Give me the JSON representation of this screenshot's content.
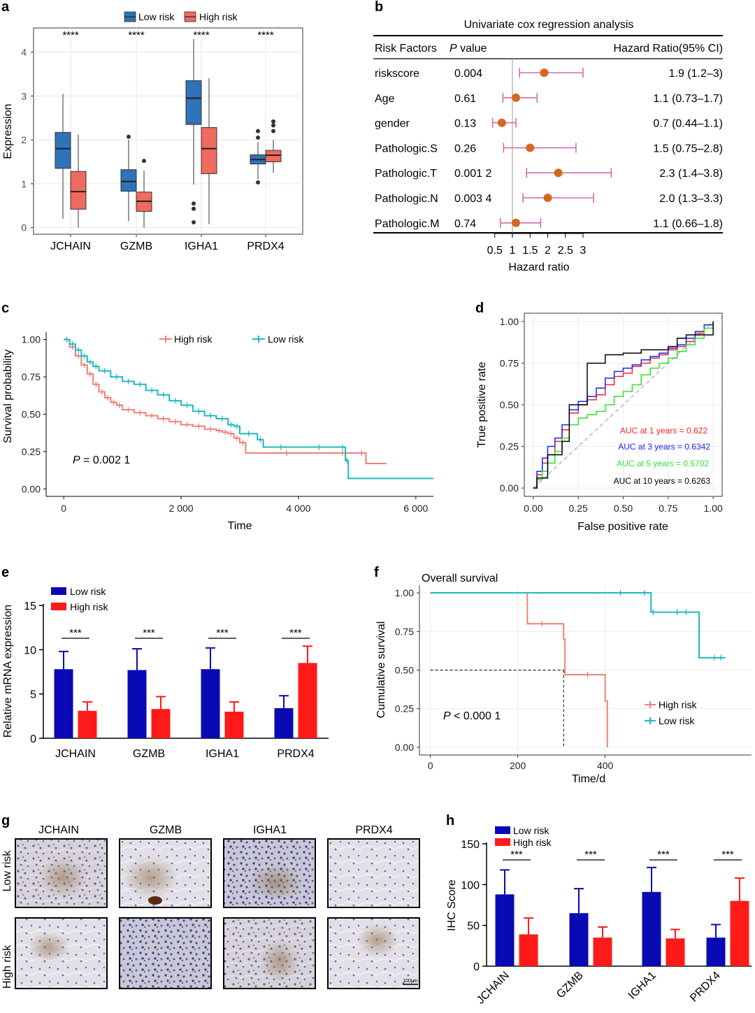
{
  "panels": {
    "a": {
      "label": "a",
      "chart_data": {
        "type": "boxplot",
        "ylabel": "Expression",
        "categories": [
          "JCHAIN",
          "GZMB",
          "IGHA1",
          "PRDX4"
        ],
        "yticks": [
          "0",
          "1",
          "2",
          "3",
          "4"
        ],
        "ylim": [
          -0.15,
          4.55
        ],
        "legend": [
          "Low risk",
          "High risk"
        ],
        "significance": [
          "****",
          "****",
          "****",
          "****"
        ],
        "colors": {
          "Low risk": "#2f73b8",
          "High risk": "#ef6a5f"
        },
        "series": [
          {
            "name": "Low risk",
            "boxes": [
              {
                "min": 0.2,
                "q1": 1.35,
                "median": 1.8,
                "q3": 2.17,
                "max": 3.05,
                "outliers": []
              },
              {
                "min": 0.15,
                "q1": 0.83,
                "median": 1.05,
                "q3": 1.32,
                "max": 2.0,
                "outliers": [
                  2.07
                ]
              },
              {
                "min": 0.98,
                "q1": 2.35,
                "median": 2.95,
                "q3": 3.35,
                "max": 4.3,
                "outliers": [
                  0.55,
                  0.43,
                  0.12
                ]
              },
              {
                "min": 1.1,
                "q1": 1.45,
                "median": 1.55,
                "q3": 1.66,
                "max": 1.95,
                "outliers": [
                  2.05,
                  2.2,
                  1.03
                ]
              }
            ]
          },
          {
            "name": "High risk",
            "boxes": [
              {
                "min": 0.0,
                "q1": 0.42,
                "median": 0.82,
                "q3": 1.28,
                "max": 2.12,
                "outliers": []
              },
              {
                "min": 0.0,
                "q1": 0.37,
                "median": 0.6,
                "q3": 0.81,
                "max": 1.3,
                "outliers": [
                  1.52
                ]
              },
              {
                "min": 0.08,
                "q1": 1.23,
                "median": 1.8,
                "q3": 2.28,
                "max": 3.4,
                "outliers": []
              },
              {
                "min": 1.25,
                "q1": 1.5,
                "median": 1.65,
                "q3": 1.76,
                "max": 2.0,
                "outliers": [
                  2.2,
                  2.33,
                  2.42
                ]
              }
            ]
          }
        ]
      }
    },
    "b": {
      "label": "b",
      "chart_data": {
        "type": "forest",
        "title": "Univariate cox regression analysis",
        "headers": {
          "factor": "Risk Factors",
          "p": "P value",
          "hr": "Hazard Ratio(95% CI)"
        },
        "p_italic": "P",
        "p_rest": " value",
        "rows": [
          {
            "factor": "riskscore",
            "p": "0.004",
            "hr_text": "1.9 (1.2–3)",
            "hr": 1.9,
            "lo": 1.2,
            "hi": 3.0
          },
          {
            "factor": "Age",
            "p": "0.61",
            "hr_text": "1.1 (0.73–1.7)",
            "hr": 1.1,
            "lo": 0.73,
            "hi": 1.7
          },
          {
            "factor": "gender",
            "p": "0.13",
            "hr_text": "0.7 (0.44–1.1)",
            "hr": 0.7,
            "lo": 0.44,
            "hi": 1.1
          },
          {
            "factor": "Pathologic.S",
            "p": "0.26",
            "hr_text": "1.5 (0.75–2.8)",
            "hr": 1.5,
            "lo": 0.75,
            "hi": 2.8
          },
          {
            "factor": "Pathologic.T",
            "p": "0.001 2",
            "hr_text": "2.3 (1.4–3.8)",
            "hr": 2.3,
            "lo": 1.4,
            "hi": 3.8
          },
          {
            "factor": "Pathologic.N",
            "p": "0.003 4",
            "hr_text": "2.0 (1.3–3.3)",
            "hr": 2.0,
            "lo": 1.3,
            "hi": 3.3
          },
          {
            "factor": "Pathologic.M",
            "p": "0.74",
            "hr_text": "1.1 (0.66–1.8)",
            "hr": 1.1,
            "lo": 0.66,
            "hi": 1.8
          }
        ],
        "xticks": [
          0.5,
          1,
          1.5,
          2,
          2.5,
          3
        ],
        "xtick_labels": [
          "0.5",
          "1",
          "1.5",
          "2",
          "2.5",
          "3"
        ],
        "xlabel": "Hazard ratio",
        "point_color": "#d2691e",
        "ci_color": "#d46bb0"
      }
    },
    "c": {
      "label": "c",
      "chart_data": {
        "type": "line",
        "subtype": "kaplan-meier",
        "xlabel": "Time",
        "ylabel": "Survival probability",
        "xticks": [
          0,
          2000,
          4000,
          6000
        ],
        "xtick_labels": [
          "0",
          "2 000",
          "4 000",
          "6 000"
        ],
        "yticks": [
          0,
          0.25,
          0.5,
          0.75,
          1.0
        ],
        "ytick_labels": [
          "0.00",
          "0.25",
          "0.50",
          "0.75",
          "1.00"
        ],
        "xlim": [
          -300,
          6300
        ],
        "ylim": [
          -0.05,
          1.05
        ],
        "p_label": "P",
        "p_value": " = 0.002 1",
        "series": [
          {
            "name": "High risk",
            "color": "#f07f75",
            "x": [
              0,
              100,
              200,
              300,
              400,
              500,
              600,
              700,
              800,
              900,
              1000,
              1200,
              1400,
              1600,
              1800,
              2000,
              2200,
              2400,
              2600,
              2700,
              2800,
              2900,
              3000,
              3100,
              4500,
              5000,
              5150,
              5500
            ],
            "y": [
              1.0,
              0.95,
              0.89,
              0.83,
              0.77,
              0.7,
              0.65,
              0.61,
              0.58,
              0.56,
              0.53,
              0.51,
              0.49,
              0.47,
              0.45,
              0.43,
              0.42,
              0.4,
              0.39,
              0.38,
              0.37,
              0.34,
              0.31,
              0.24,
              0.24,
              0.24,
              0.17,
              0.17
            ]
          },
          {
            "name": "Low risk",
            "color": "#1fb8c0",
            "x": [
              0,
              100,
              200,
              300,
              400,
              500,
              600,
              800,
              1000,
              1200,
              1400,
              1600,
              1800,
              2000,
              2200,
              2400,
              2600,
              2800,
              2900,
              3000,
              3300,
              3400,
              4000,
              4700,
              4800,
              4850,
              6300
            ],
            "y": [
              1.0,
              0.97,
              0.93,
              0.89,
              0.85,
              0.82,
              0.79,
              0.75,
              0.72,
              0.7,
              0.66,
              0.63,
              0.59,
              0.56,
              0.52,
              0.49,
              0.47,
              0.43,
              0.42,
              0.37,
              0.33,
              0.28,
              0.28,
              0.28,
              0.19,
              0.07,
              0.07
            ]
          }
        ]
      }
    },
    "d": {
      "label": "d",
      "chart_data": {
        "type": "line",
        "subtype": "roc",
        "xlabel": "False positive rate",
        "ylabel": "True positive rate",
        "ticks": [
          0,
          0.25,
          0.5,
          0.75,
          1.0
        ],
        "tick_labels": [
          "0.00",
          "0.25",
          "0.50",
          "0.75",
          "1.00"
        ],
        "series": [
          {
            "name": "AUC at 1 years = 0.622",
            "color": "#ff2020",
            "x": [
              0,
              0.02,
              0.05,
              0.08,
              0.12,
              0.16,
              0.2,
              0.25,
              0.3,
              0.35,
              0.4,
              0.45,
              0.5,
              0.55,
              0.6,
              0.65,
              0.7,
              0.75,
              0.8,
              0.85,
              0.9,
              0.95,
              1.0
            ],
            "y": [
              0,
              0.08,
              0.15,
              0.2,
              0.28,
              0.35,
              0.45,
              0.5,
              0.53,
              0.56,
              0.62,
              0.67,
              0.69,
              0.73,
              0.75,
              0.78,
              0.8,
              0.83,
              0.85,
              0.88,
              0.93,
              0.98,
              1.0
            ]
          },
          {
            "name": "AUC at 3 years = 0.6342",
            "color": "#2020ff",
            "x": [
              0,
              0.02,
              0.05,
              0.08,
              0.12,
              0.16,
              0.2,
              0.25,
              0.3,
              0.35,
              0.4,
              0.45,
              0.5,
              0.55,
              0.6,
              0.65,
              0.7,
              0.75,
              0.8,
              0.85,
              0.9,
              0.95,
              1.0
            ],
            "y": [
              0,
              0.1,
              0.18,
              0.25,
              0.3,
              0.38,
              0.47,
              0.52,
              0.55,
              0.6,
              0.66,
              0.7,
              0.72,
              0.74,
              0.77,
              0.79,
              0.81,
              0.84,
              0.86,
              0.9,
              0.94,
              0.98,
              1.0
            ]
          },
          {
            "name": "AUC at 5 years = 0.5702",
            "color": "#30e030",
            "x": [
              0,
              0.02,
              0.05,
              0.08,
              0.12,
              0.16,
              0.2,
              0.25,
              0.3,
              0.35,
              0.4,
              0.45,
              0.5,
              0.55,
              0.6,
              0.65,
              0.7,
              0.75,
              0.8,
              0.85,
              0.9,
              0.95,
              1.0
            ],
            "y": [
              0,
              0.05,
              0.1,
              0.15,
              0.22,
              0.3,
              0.38,
              0.42,
              0.44,
              0.46,
              0.5,
              0.55,
              0.58,
              0.62,
              0.68,
              0.72,
              0.75,
              0.78,
              0.82,
              0.86,
              0.9,
              0.96,
              1.0
            ]
          },
          {
            "name": "AUC at 10 years = 0.6263",
            "color": "#000000",
            "x": [
              0,
              0.02,
              0.05,
              0.08,
              0.12,
              0.16,
              0.2,
              0.25,
              0.3,
              0.37,
              0.4,
              0.45,
              0.5,
              0.55,
              0.6,
              0.65,
              0.7,
              0.75,
              0.8,
              0.85,
              0.9,
              0.95,
              1.0
            ],
            "y": [
              0,
              0.06,
              0.06,
              0.2,
              0.2,
              0.28,
              0.5,
              0.5,
              0.75,
              0.75,
              0.8,
              0.8,
              0.81,
              0.81,
              0.83,
              0.83,
              0.83,
              0.85,
              0.9,
              0.92,
              0.92,
              0.92,
              1.0
            ]
          }
        ]
      }
    },
    "e": {
      "label": "e",
      "chart_data": {
        "type": "bar",
        "ylabel": "Relative mRNA expression",
        "categories": [
          "JCHAIN",
          "GZMB",
          "IGHA1",
          "PRDX4"
        ],
        "yticks": [
          0,
          5,
          10,
          15
        ],
        "ylim": [
          0,
          15
        ],
        "significance": [
          "***",
          "***",
          "***",
          "***"
        ],
        "series": [
          {
            "name": "Low risk",
            "color": "#0a0ab4",
            "values": [
              7.8,
              7.7,
              7.8,
              3.4
            ],
            "errors": [
              2.0,
              2.4,
              2.4,
              1.4
            ]
          },
          {
            "name": "High risk",
            "color": "#ff1a1a",
            "values": [
              3.1,
              3.3,
              3.0,
              8.5
            ],
            "errors": [
              1.0,
              1.4,
              1.1,
              1.9
            ]
          }
        ]
      }
    },
    "f": {
      "label": "f",
      "chart_data": {
        "type": "line",
        "subtype": "kaplan-meier",
        "title": "Overall survival",
        "xlabel": "Time/d",
        "ylabel": "Cumulative survival",
        "xticks": [
          0,
          200,
          400
        ],
        "xtick_labels": [
          "0",
          "200",
          "400"
        ],
        "yticks": [
          0,
          0.25,
          0.5,
          0.75,
          1.0
        ],
        "ytick_labels": [
          "0.00",
          "0.25",
          "0.50",
          "0.75",
          "1.00"
        ],
        "xlim": [
          -25,
          735
        ],
        "ylim": [
          -0.05,
          1.05
        ],
        "median_survival_days": 305,
        "p_label": "P",
        "p_value": " < 0.000 1",
        "series": [
          {
            "name": "High risk",
            "color": "#f07f75",
            "x": [
              0,
              212,
              222,
              300,
              305,
              308,
              395,
              400,
              405
            ],
            "y": [
              1.0,
              1.0,
              0.8,
              0.8,
              0.7,
              0.47,
              0.47,
              0.3,
              0.0
            ]
          },
          {
            "name": "Low risk",
            "color": "#1fb8c0",
            "x": [
              0,
              495,
              505,
              605,
              615,
              675
            ],
            "y": [
              1.0,
              1.0,
              0.875,
              0.875,
              0.58,
              0.58
            ]
          }
        ]
      }
    },
    "g": {
      "label": "g",
      "columns": [
        "JCHAIN",
        "GZMB",
        "IGHA1",
        "PRDX4"
      ],
      "rows": [
        "Low risk",
        "High risk"
      ],
      "scale_bar": "100μm"
    },
    "h": {
      "label": "h",
      "chart_data": {
        "type": "bar",
        "ylabel": "IHC Score",
        "categories": [
          "JCHAIN",
          "GZMB",
          "IGHA1",
          "PRDX4"
        ],
        "yticks": [
          0,
          50,
          100,
          150
        ],
        "ylim": [
          0,
          150
        ],
        "significance": [
          "***",
          "***",
          "***",
          "***"
        ],
        "series": [
          {
            "name": "Low risk",
            "color": "#0a0ab4",
            "values": [
              88,
              65,
              91,
              35
            ],
            "errors": [
              30,
              30,
              30,
              16
            ]
          },
          {
            "name": "High risk",
            "color": "#ff1a1a",
            "values": [
              39,
              35,
              34,
              80
            ],
            "errors": [
              20,
              13,
              11,
              28
            ]
          }
        ]
      }
    }
  }
}
